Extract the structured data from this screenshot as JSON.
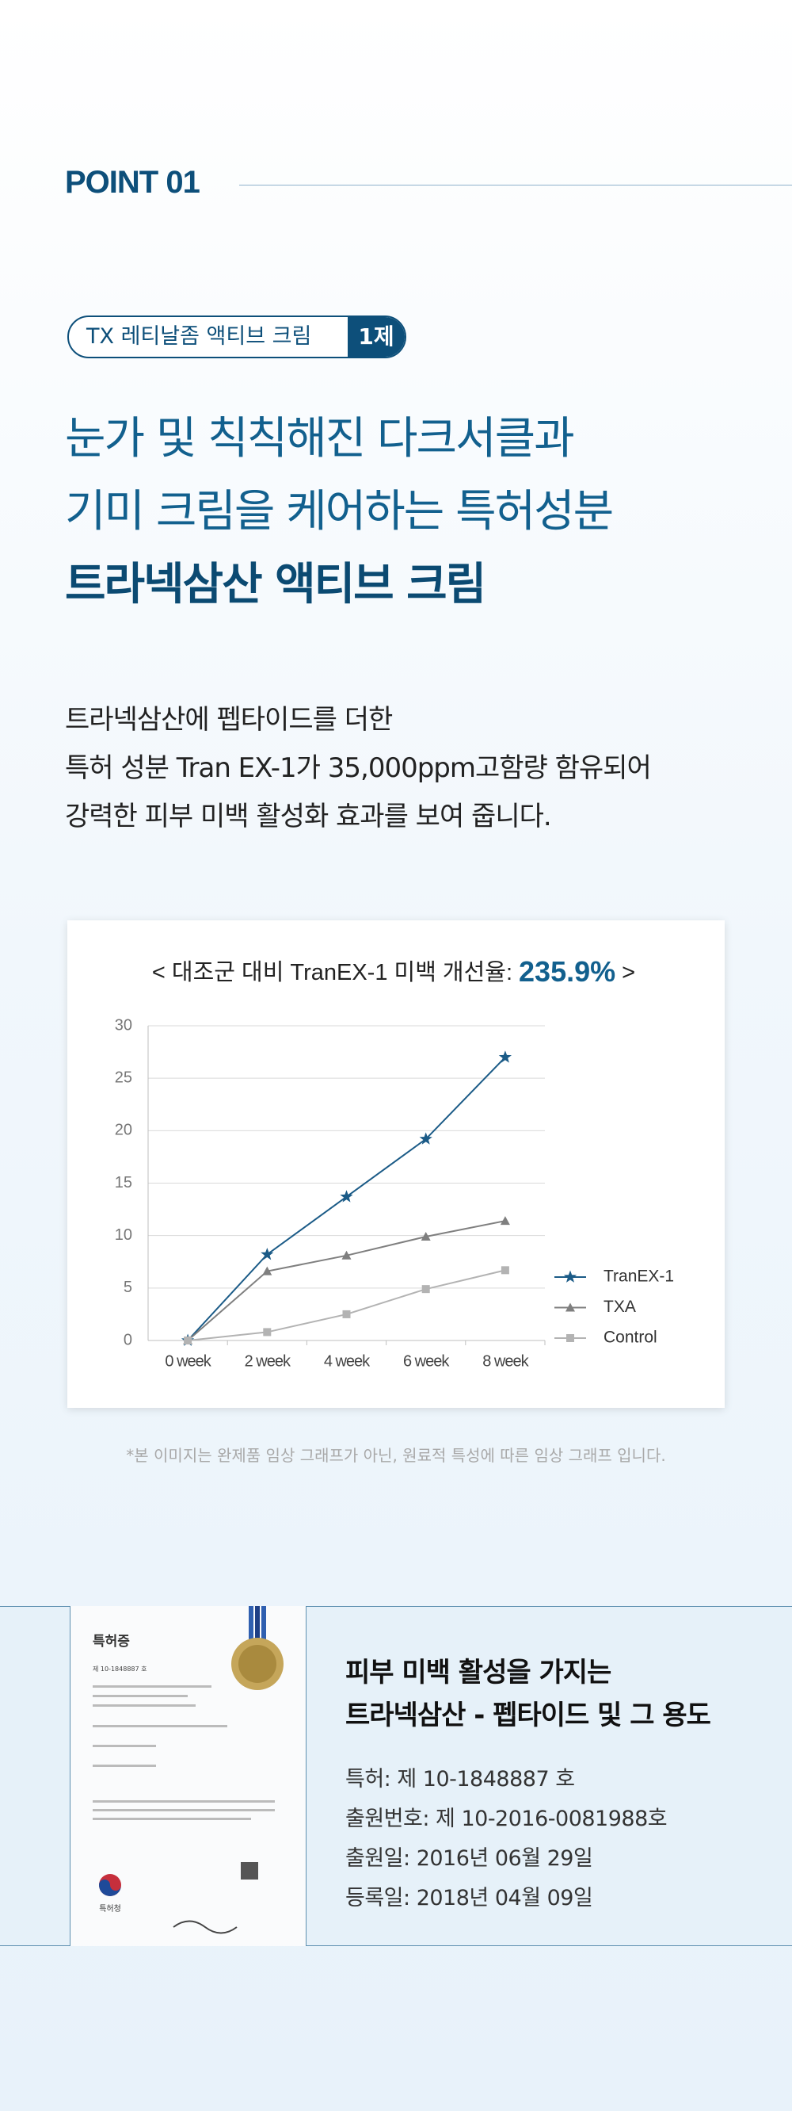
{
  "header": {
    "label": "POINT 01"
  },
  "badge": {
    "text": "TX 레티날좀 액티브 크림",
    "tag": "1제"
  },
  "headline": {
    "lines": [
      "눈가 및 칙칙해진 다크서클과",
      "기미 크림을 케어하는 특허성분"
    ],
    "emphasis": "트라넥삼산 액티브 크림"
  },
  "description": {
    "lines": [
      "트라넥삼산에 펩타이드를 더한",
      "특허 성분 Tran EX-1가 35,000ppm고함량 함유되어",
      "강력한 피부 미백 활성화 효과를 보여 줍니다."
    ]
  },
  "chart_data": {
    "type": "line",
    "title": {
      "prefix": "< 대조군 대비 TranEX-1 미백 개선율:",
      "highlight": "235.9%",
      "suffix": ">"
    },
    "categories": [
      "0 week",
      "2 week",
      "4 week",
      "6 week",
      "8 week"
    ],
    "series": [
      {
        "name": "TranEX-1",
        "color": "#1b5b87",
        "marker": "star",
        "values": [
          0,
          8.2,
          13.7,
          19.2,
          27
        ]
      },
      {
        "name": "TXA",
        "color": "#7f7f7f",
        "marker": "triangle",
        "values": [
          0,
          6.6,
          8.1,
          9.9,
          11.4
        ]
      },
      {
        "name": "Control",
        "color": "#b3b3b3",
        "marker": "square",
        "values": [
          0,
          0.8,
          2.5,
          4.9,
          6.7
        ]
      }
    ],
    "ylim": [
      0,
      30
    ],
    "yticks": [
      0,
      5,
      10,
      15,
      20,
      25,
      30
    ],
    "grid": true,
    "legend": "right"
  },
  "footnote": "*본 이미지는 완제품 임상 그래프가 아닌, 원료적 특성에 따른 임상 그래프 입니다.",
  "patent": {
    "certificate": {
      "title": "특허증",
      "number": "제 10-1848887 호",
      "office": "특허청"
    },
    "title_lines": [
      "피부 미백 활성을 가지는",
      "트라넥삼산 - 펩타이드 및 그 용도"
    ],
    "details": [
      "특허: 제 10-1848887 호",
      "출원번호: 제 10-2016-0081988호",
      "출원일: 2016년 06월 29일",
      "등록일: 2018년 04월 09일"
    ]
  }
}
